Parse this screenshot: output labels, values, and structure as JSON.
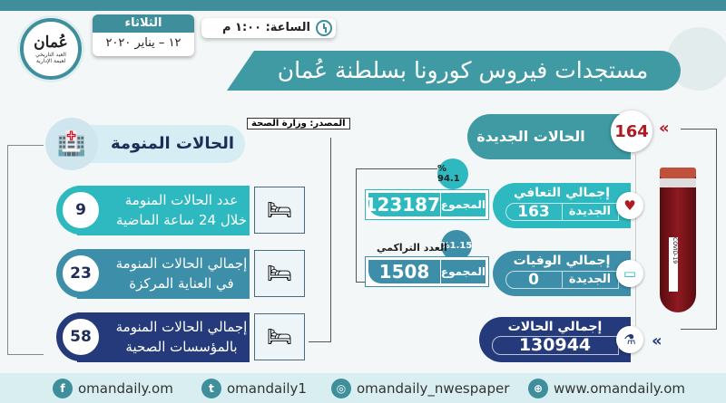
{
  "header": {
    "day": "الثلاثاء",
    "date": "١٢ – يناير ٢٠٢٠",
    "time": "الساعة: ١:٠٠ م",
    "title": "مستجدات فيروس كورونا بسلطنة عُمان",
    "logo_text": "عُمان",
    "logo_sub": "العيد التاريخي",
    "logo_tag": "لعيمة الإدارية"
  },
  "new_cases": {
    "label": "الحالات الجديدة",
    "value": "164"
  },
  "recovered": {
    "label": "إجمالي التعافي",
    "new_label": "الجديدة",
    "new_value": "163",
    "total_label": "المجموع",
    "total_value": "123187",
    "percent": "% 94.1"
  },
  "deaths": {
    "label": "إجمالي الوفيات",
    "new_label": "الجديدة",
    "new_value": "0",
    "total_label": "المجموع",
    "total_value": "1508",
    "percent": "%1.15",
    "cumulative_label": "العدد التراكمي"
  },
  "total_cases": {
    "label": "إجمالي الحالات",
    "value": "130944"
  },
  "test_tube_label": "COVID-19",
  "source": "المصدر: وزارة الصحة",
  "hospitalized": {
    "title": "الحالات المنومة",
    "rows": [
      {
        "text": "عدد الحالات المنومة خلال 24 ساعة الماضية",
        "value": "9",
        "color": "#2eb8bf"
      },
      {
        "text": "إجمالي الحالات المنومة في العناية المركزة",
        "value": "23",
        "color": "#3d8ea8"
      },
      {
        "text": "إجمالي الحالات المنومة بالمؤسسات الصحية",
        "value": "58",
        "color": "#243a7a"
      }
    ]
  },
  "footer": {
    "facebook": "omandaily.om",
    "twitter": "omandaily1",
    "instagram": "omandaily_nwespaper",
    "website": "www.omandaily.om"
  },
  "colors": {
    "teal": "#3f9aa3",
    "accent": "#2eb8bf",
    "navy": "#243a7a",
    "red": "#b01a24"
  }
}
